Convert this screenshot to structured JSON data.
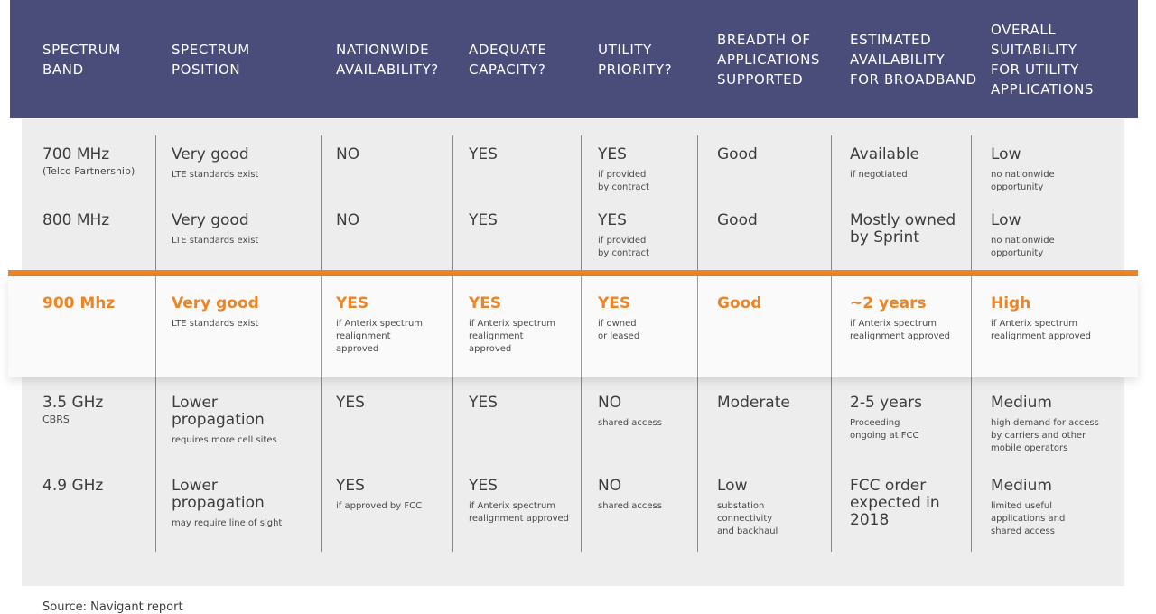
{
  "headers": [
    {
      "text": "SPECTRUM\nBAND"
    },
    {
      "text": "SPECTRUM\nPOSITION"
    },
    {
      "text": "NATIONWIDE\nAVAILABILITY?"
    },
    {
      "text": "ADEQUATE\nCAPACITY?"
    },
    {
      "text": "UTILITY\nPRIORITY?"
    },
    {
      "text": "BREADTH OF\nAPPLICATIONS\nSUPPORTED"
    },
    {
      "text": "ESTIMATED\nAVAILABILITY\nFOR BROADBAND"
    },
    {
      "text": "OVERALL\nSUITABILITY\nFOR UTILITY\nAPPLICATIONS"
    }
  ],
  "rows": [
    {
      "cells": [
        {
          "main": "700 MHz",
          "sub": "(Telco Partnership)"
        },
        {
          "main": "Very good",
          "sub": "LTE standards exist"
        },
        {
          "main": "NO",
          "sub": ""
        },
        {
          "main": "YES",
          "sub": ""
        },
        {
          "main": "YES",
          "sub": "if provided\nby contract"
        },
        {
          "main": "Good",
          "sub": ""
        },
        {
          "main": "Available",
          "sub": "if negotiated"
        },
        {
          "main": "Low",
          "sub": "no nationwide\nopportunity"
        }
      ]
    },
    {
      "cells": [
        {
          "main": "800 MHz",
          "sub": ""
        },
        {
          "main": "Very good",
          "sub": "LTE standards exist"
        },
        {
          "main": "NO",
          "sub": ""
        },
        {
          "main": "YES",
          "sub": ""
        },
        {
          "main": "YES",
          "sub": "if provided\nby contract"
        },
        {
          "main": "Good",
          "sub": ""
        },
        {
          "main": "Mostly owned\nby Sprint",
          "sub": ""
        },
        {
          "main": "Low",
          "sub": "no nationwide\nopportunity"
        }
      ]
    },
    {
      "cells": [
        {
          "main": "900 Mhz",
          "sub": ""
        },
        {
          "main": "Very good",
          "sub": "LTE standards exist"
        },
        {
          "main": "YES",
          "sub": "if Anterix spectrum\nrealignment\napproved"
        },
        {
          "main": "YES",
          "sub": "if Anterix spectrum\nrealignment\napproved"
        },
        {
          "main": "YES",
          "sub": "if owned\nor leased"
        },
        {
          "main": "Good",
          "sub": ""
        },
        {
          "main": "~2 years",
          "sub": "if Anterix spectrum\nrealignment approved"
        },
        {
          "main": "High",
          "sub": "if Anterix spectrum\nrealignment approved"
        }
      ]
    },
    {
      "cells": [
        {
          "main": "3.5 GHz",
          "sub": "CBRS"
        },
        {
          "main": "Lower\npropagation",
          "sub": "requires more cell sites"
        },
        {
          "main": "YES",
          "sub": ""
        },
        {
          "main": "YES",
          "sub": ""
        },
        {
          "main": "NO",
          "sub": "shared access"
        },
        {
          "main": "Moderate",
          "sub": ""
        },
        {
          "main": "2-5 years",
          "sub": "Proceeding\nongoing at FCC"
        },
        {
          "main": "Medium",
          "sub": "high demand for access\nby carriers and other\nmobile operators"
        }
      ]
    },
    {
      "cells": [
        {
          "main": "4.9 GHz",
          "sub": ""
        },
        {
          "main": "Lower\npropagation",
          "sub": "may require line of sight"
        },
        {
          "main": "YES",
          "sub": "if approved by FCC"
        },
        {
          "main": "YES",
          "sub": "if Anterix spectrum\nrealignment approved"
        },
        {
          "main": "NO",
          "sub": "shared access"
        },
        {
          "main": "Low",
          "sub": "substation\nconnectivity\nand backhaul"
        },
        {
          "main": "FCC order\nexpected in\n2018",
          "sub": ""
        },
        {
          "main": "Medium",
          "sub": "limited useful\napplications and\nshared access"
        }
      ]
    }
  ],
  "source": "Source: Navigant report",
  "colors": {
    "header_bg": "#4a4c7a",
    "highlight": "#ee8424",
    "panel_bg": "#ededed"
  }
}
